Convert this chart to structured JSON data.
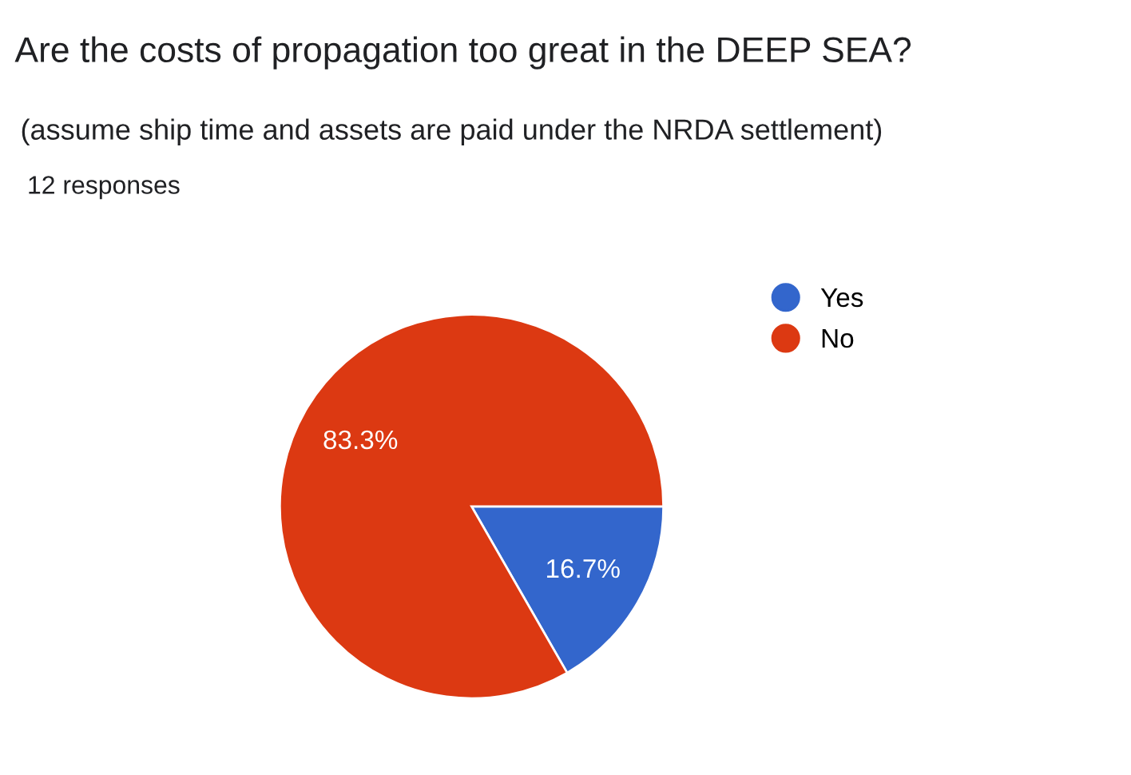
{
  "chart_data": {
    "type": "pie",
    "title": "Are the costs of propagation too great in the DEEP SEA?",
    "subtitle": "(assume ship time and assets are paid under the NRDA settlement)",
    "annotations": [
      "12 responses"
    ],
    "categories": [
      "Yes",
      "No"
    ],
    "values": [
      16.7,
      83.3
    ],
    "colors": [
      "#3366cc",
      "#dc3912"
    ],
    "value_labels": [
      "16.7%",
      "83.3%"
    ],
    "legend": "top right"
  }
}
